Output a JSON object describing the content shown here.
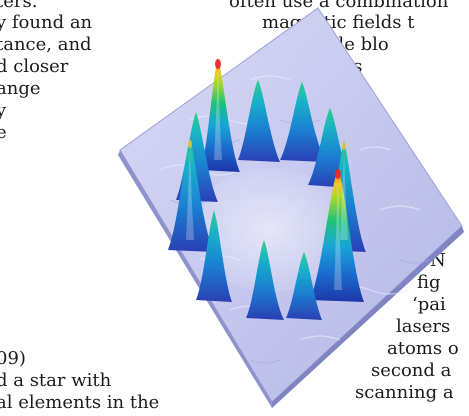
{
  "left_text": [
    "ters.",
    "y found an",
    "tance, and",
    "d closer",
    "ange",
    "y",
    "e",
    "09)",
    "d a star with",
    "al elements in the"
  ],
  "right_text": [
    "often use a combination",
    "magnetic fields t",
    "a little blo",
    "abs",
    "N",
    "fig",
    "‘pai",
    "lasers",
    "atoms o",
    "second a",
    "scanning a"
  ],
  "figure": {
    "description_icon": "surface-plot-peaks",
    "surface_color": "#c4c4ec",
    "surface_edge_color": "#9aa0d6",
    "peak_colors": [
      "#1c35a8",
      "#18a6d6",
      "#1ec27a",
      "#a7d82a",
      "#f4c72a",
      "#ff7a1a",
      "#e8272a"
    ]
  }
}
